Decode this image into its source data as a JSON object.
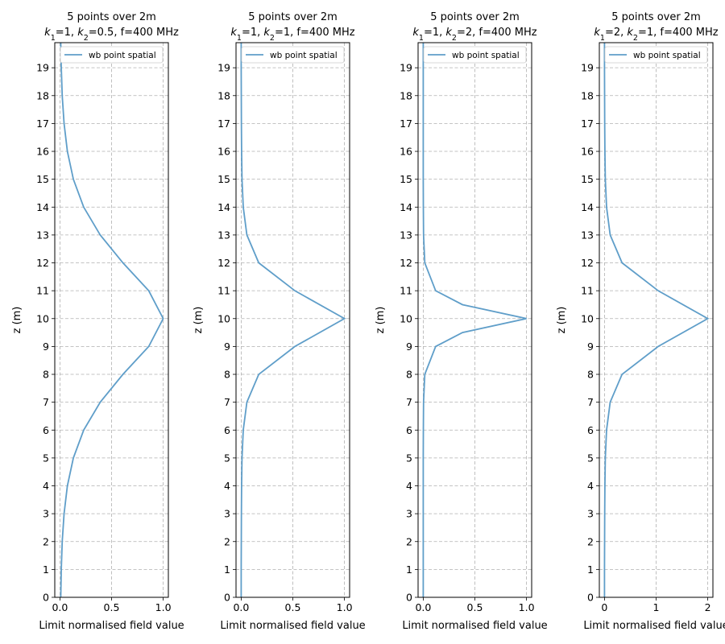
{
  "chart_data": [
    {
      "type": "line",
      "title_line1": "5 points over 2m",
      "title_line2": "k1=1, k2=0.5, f=400 MHz",
      "k1": "1",
      "k2": "0.5",
      "f_label": "f=400 MHz",
      "xlabel": "Limit normalised field value",
      "ylabel": "z (m)",
      "xlim": [
        -0.05,
        1.05
      ],
      "ylim": [
        0,
        19.9
      ],
      "xticks": [
        0.0,
        0.5,
        1.0
      ],
      "xtick_labels": [
        "0.0",
        "0.5",
        "1.0"
      ],
      "yticks": [
        0,
        1,
        2,
        3,
        4,
        5,
        6,
        7,
        8,
        9,
        10,
        11,
        12,
        13,
        14,
        15,
        16,
        17,
        18,
        19
      ],
      "ytick_labels": [
        "0",
        "1",
        "2",
        "3",
        "4",
        "5",
        "6",
        "7",
        "8",
        "9",
        "10",
        "11",
        "12",
        "13",
        "14",
        "15",
        "16",
        "17",
        "18",
        "19"
      ],
      "legend": [
        "wb point spatial"
      ],
      "series": [
        {
          "name": "wb point spatial",
          "peak_z": 10,
          "peak_value": 1.0,
          "z": [
            0,
            1,
            2,
            3,
            4,
            5,
            6,
            7,
            8,
            9,
            10,
            11,
            12,
            13,
            14,
            15,
            16,
            17,
            18,
            19,
            19.9
          ],
          "values": [
            0.008,
            0.013,
            0.022,
            0.04,
            0.072,
            0.13,
            0.23,
            0.39,
            0.61,
            0.86,
            1.0,
            0.86,
            0.61,
            0.39,
            0.23,
            0.13,
            0.072,
            0.04,
            0.022,
            0.013,
            0.008
          ]
        }
      ]
    },
    {
      "type": "line",
      "title_line1": "5 points over 2m",
      "title_line2": "k1=1, k2=1, f=400 MHz",
      "k1": "1",
      "k2": "1",
      "f_label": "f=400 MHz",
      "xlabel": "Limit normalised field value",
      "ylabel": "z (m)",
      "xlim": [
        -0.05,
        1.05
      ],
      "ylim": [
        0,
        19.9
      ],
      "xticks": [
        0.0,
        0.5,
        1.0
      ],
      "xtick_labels": [
        "0.0",
        "0.5",
        "1.0"
      ],
      "yticks": [
        0,
        1,
        2,
        3,
        4,
        5,
        6,
        7,
        8,
        9,
        10,
        11,
        12,
        13,
        14,
        15,
        16,
        17,
        18,
        19
      ],
      "ytick_labels": [
        "0",
        "1",
        "2",
        "3",
        "4",
        "5",
        "6",
        "7",
        "8",
        "9",
        "10",
        "11",
        "12",
        "13",
        "14",
        "15",
        "16",
        "17",
        "18",
        "19"
      ],
      "legend": [
        "wb point spatial"
      ],
      "series": [
        {
          "name": "wb point spatial",
          "peak_z": 10,
          "peak_value": 1.0,
          "z": [
            0,
            1,
            2,
            3,
            4,
            5,
            6,
            7,
            8,
            9,
            10,
            11,
            12,
            13,
            14,
            15,
            16,
            17,
            18,
            19,
            19.9
          ],
          "values": [
            0.0,
            0.0,
            0.001,
            0.002,
            0.004,
            0.008,
            0.02,
            0.055,
            0.17,
            0.52,
            1.0,
            0.52,
            0.17,
            0.055,
            0.02,
            0.008,
            0.004,
            0.002,
            0.001,
            0.0,
            0.0
          ]
        }
      ]
    },
    {
      "type": "line",
      "title_line1": "5 points over 2m",
      "title_line2": "k1=1, k2=2, f=400 MHz",
      "k1": "1",
      "k2": "2",
      "f_label": "f=400 MHz",
      "xlabel": "Limit normalised field value",
      "ylabel": "z (m)",
      "xlim": [
        -0.05,
        1.05
      ],
      "ylim": [
        0,
        19.9
      ],
      "xticks": [
        0.0,
        0.5,
        1.0
      ],
      "xtick_labels": [
        "0.0",
        "0.5",
        "1.0"
      ],
      "yticks": [
        0,
        1,
        2,
        3,
        4,
        5,
        6,
        7,
        8,
        9,
        10,
        11,
        12,
        13,
        14,
        15,
        16,
        17,
        18,
        19
      ],
      "ytick_labels": [
        "0",
        "1",
        "2",
        "3",
        "4",
        "5",
        "6",
        "7",
        "8",
        "9",
        "10",
        "11",
        "12",
        "13",
        "14",
        "15",
        "16",
        "17",
        "18",
        "19"
      ],
      "legend": [
        "wb point spatial"
      ],
      "series": [
        {
          "name": "wb point spatial",
          "peak_z": 10,
          "peak_value": 1.0,
          "z": [
            0,
            1,
            2,
            3,
            4,
            5,
            6,
            7,
            8,
            9,
            9.5,
            10,
            10.5,
            11,
            12,
            13,
            14,
            15,
            16,
            17,
            18,
            19,
            19.9
          ],
          "values": [
            0.0,
            0.0,
            0.0,
            0.0,
            0.0,
            0.0,
            0.001,
            0.003,
            0.015,
            0.12,
            0.38,
            1.0,
            0.38,
            0.12,
            0.015,
            0.003,
            0.001,
            0.0,
            0.0,
            0.0,
            0.0,
            0.0,
            0.0
          ]
        }
      ]
    },
    {
      "type": "line",
      "title_line1": "5 points over 2m",
      "title_line2": "k1=2, k2=1, f=400 MHz",
      "k1": "2",
      "k2": "1",
      "f_label": "f=400 MHz",
      "xlabel": "Limit normalised field value",
      "ylabel": "z (m)",
      "xlim": [
        -0.1,
        2.1
      ],
      "ylim": [
        0,
        19.9
      ],
      "xticks": [
        0,
        1,
        2
      ],
      "xtick_labels": [
        "0",
        "1",
        "2"
      ],
      "yticks": [
        0,
        1,
        2,
        3,
        4,
        5,
        6,
        7,
        8,
        9,
        10,
        11,
        12,
        13,
        14,
        15,
        16,
        17,
        18,
        19
      ],
      "ytick_labels": [
        "0",
        "1",
        "2",
        "3",
        "4",
        "5",
        "6",
        "7",
        "8",
        "9",
        "10",
        "11",
        "12",
        "13",
        "14",
        "15",
        "16",
        "17",
        "18",
        "19"
      ],
      "legend": [
        "wb point spatial"
      ],
      "series": [
        {
          "name": "wb point spatial",
          "peak_z": 10,
          "peak_value": 2.0,
          "z": [
            0,
            1,
            2,
            3,
            4,
            5,
            6,
            7,
            8,
            9,
            10,
            11,
            12,
            13,
            14,
            15,
            16,
            17,
            18,
            19,
            19.9
          ],
          "values": [
            0.0,
            0.0,
            0.002,
            0.004,
            0.008,
            0.016,
            0.04,
            0.11,
            0.34,
            1.04,
            2.0,
            1.04,
            0.34,
            0.11,
            0.04,
            0.016,
            0.008,
            0.004,
            0.002,
            0.0,
            0.0
          ]
        }
      ]
    }
  ],
  "colors": {
    "series": "#5f9ec9",
    "grid": "#b0b0b0"
  }
}
